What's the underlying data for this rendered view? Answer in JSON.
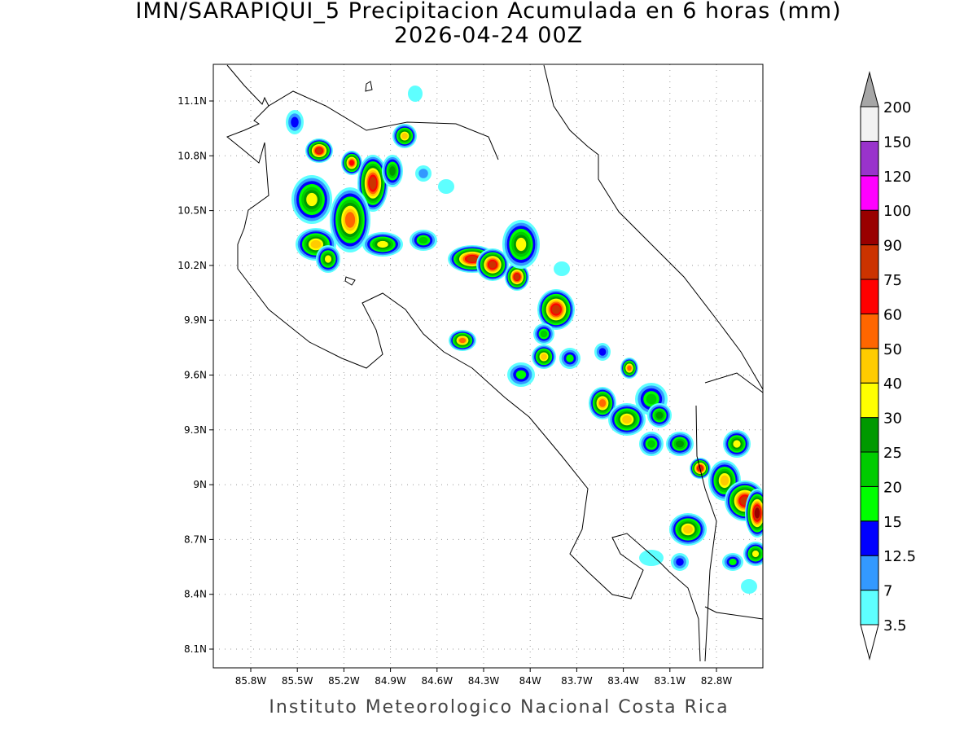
{
  "title": "IMN/SARAPIQUI_5 Precipitacion Acumulada en 6 horas (mm)",
  "subtitle": "2026-04-24 00Z",
  "map": {
    "lon_labels": [
      "85.8W",
      "85.5W",
      "85.2W",
      "84.9W",
      "84.6W",
      "84.3W",
      "84W",
      "83.7W",
      "83.4W",
      "83.1W",
      "82.8W"
    ],
    "lat_labels": [
      "11.1N",
      "10.8N",
      "10.5N",
      "10.2N",
      "9.9N",
      "9.6N",
      "9.3N",
      "9N",
      "8.7N",
      "8.4N",
      "8.1N"
    ]
  },
  "colorbar": {
    "levels": [
      3.5,
      7,
      12.5,
      15,
      20,
      25,
      30,
      40,
      50,
      60,
      75,
      90,
      100,
      120,
      150,
      200
    ],
    "colors": [
      "#5effff",
      "#3399ff",
      "#0000ff",
      "#00ff00",
      "#00cc00",
      "#009900",
      "#ffff00",
      "#ffcc00",
      "#ff6600",
      "#ff0000",
      "#cc3300",
      "#990000",
      "#ff00ff",
      "#9933cc",
      "#f2f2f2"
    ],
    "under_color": "#ffffff",
    "over_color": "#a6a6a6"
  },
  "footer": "Instituto Meteorologico Nacional Costa Rica"
}
